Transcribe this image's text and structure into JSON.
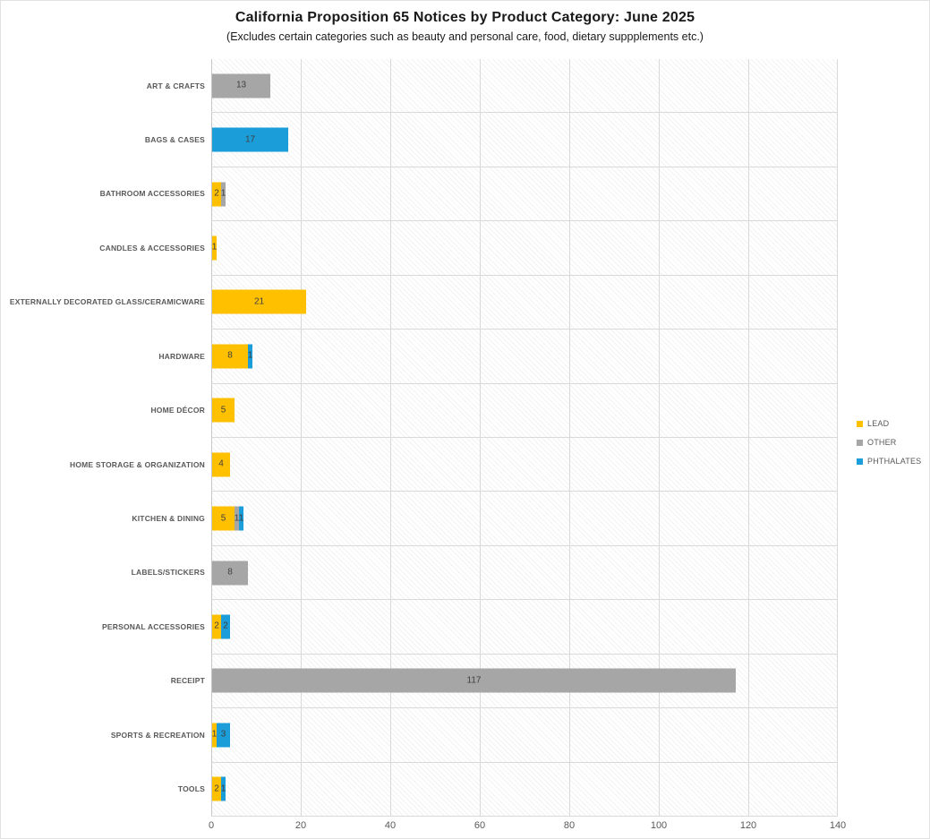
{
  "chart_data": {
    "type": "bar",
    "orientation": "horizontal",
    "stacked": true,
    "title": "California Proposition 65 Notices by Product Category: June 2025",
    "subtitle": "(Excludes certain categories such as beauty and personal care, food, dietary suppplements etc.)",
    "categories": [
      "ART & CRAFTS",
      "BAGS & CASES",
      "BATHROOM ACCESSORIES",
      "CANDLES & ACCESSORIES",
      "EXTERNALLY DECORATED GLASS/CERAMICWARE",
      "HARDWARE",
      "HOME DÉCOR",
      "HOME STORAGE & ORGANIZATION",
      "KITCHEN & DINING",
      "LABELS/STICKERS",
      "PERSONAL ACCESSORIES",
      "RECEIPT",
      "SPORTS & RECREATION",
      "TOOLS"
    ],
    "series": [
      {
        "name": "LEAD",
        "color": "#FFC000",
        "values": [
          0,
          0,
          2,
          1,
          21,
          8,
          5,
          4,
          5,
          0,
          2,
          0,
          1,
          2
        ]
      },
      {
        "name": "OTHER",
        "color": "#A6A6A6",
        "values": [
          13,
          0,
          1,
          0,
          0,
          0,
          0,
          0,
          1,
          8,
          0,
          117,
          0,
          0
        ]
      },
      {
        "name": "PHTHALATES",
        "color": "#1A9DD9",
        "values": [
          0,
          17,
          0,
          0,
          0,
          1,
          0,
          0,
          1,
          0,
          2,
          0,
          3,
          1
        ]
      }
    ],
    "xlim": [
      0,
      140
    ],
    "x_ticks": [
      0,
      20,
      40,
      60,
      80,
      100,
      120,
      140
    ],
    "grid": "vertical-major-and-row-separators",
    "legend_position": "right",
    "data_labels": true,
    "data_label_color": "#3f3f3f",
    "plot_background": "light-diagonal-hatch"
  }
}
